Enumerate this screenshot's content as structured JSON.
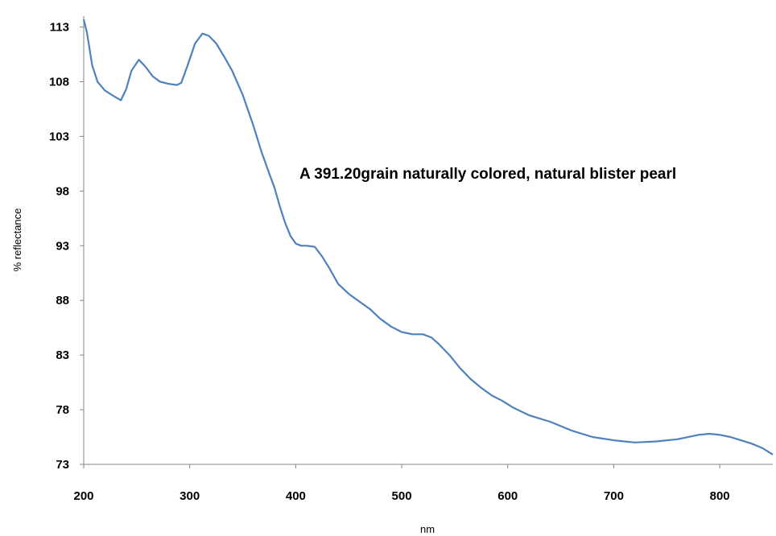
{
  "chart_data": {
    "type": "line",
    "title": "",
    "xlabel": "nm",
    "ylabel": "% reflectance",
    "annotation": "A 391.20grain naturally colored, natural blister pearl",
    "xlim": [
      200,
      850
    ],
    "ylim": [
      73,
      114
    ],
    "x_ticks": [
      "200",
      "300",
      "400",
      "500",
      "600",
      "700",
      "800"
    ],
    "y_ticks": [
      "73",
      "78",
      "83",
      "88",
      "93",
      "98",
      "103",
      "108",
      "113"
    ],
    "grid": false,
    "legend": "none",
    "series_color": "#4f81bd",
    "series": [
      {
        "x": [
          200,
          203,
          208,
          213,
          220,
          228,
          235,
          240,
          245,
          252,
          258,
          265,
          272,
          280,
          288,
          292,
          298,
          305,
          312,
          318,
          325,
          333,
          340,
          350,
          360,
          368,
          375,
          380,
          385,
          390,
          395,
          400,
          405,
          410,
          418,
          425,
          432,
          440,
          450,
          460,
          470,
          480,
          490,
          500,
          510,
          520,
          528,
          535,
          545,
          555,
          565,
          575,
          585,
          595,
          605,
          620,
          640,
          660,
          680,
          700,
          720,
          740,
          760,
          780,
          790,
          800,
          810,
          820,
          830,
          840,
          850
        ],
        "y": [
          113.7,
          112.5,
          109.5,
          108.0,
          107.2,
          106.7,
          106.3,
          107.3,
          109.0,
          110.0,
          109.4,
          108.5,
          108.0,
          107.8,
          107.7,
          107.9,
          109.5,
          111.5,
          112.4,
          112.2,
          111.5,
          110.2,
          109.0,
          106.8,
          104.0,
          101.5,
          99.6,
          98.3,
          96.6,
          95.1,
          93.9,
          93.2,
          93.0,
          93.0,
          92.9,
          92.0,
          90.9,
          89.5,
          88.6,
          87.9,
          87.2,
          86.3,
          85.6,
          85.1,
          84.9,
          84.9,
          84.6,
          84.0,
          83.0,
          81.8,
          80.8,
          80.0,
          79.3,
          78.8,
          78.2,
          77.5,
          76.9,
          76.1,
          75.5,
          75.2,
          75.0,
          75.1,
          75.3,
          75.7,
          75.8,
          75.7,
          75.5,
          75.2,
          74.9,
          74.5,
          73.9
        ]
      }
    ]
  }
}
